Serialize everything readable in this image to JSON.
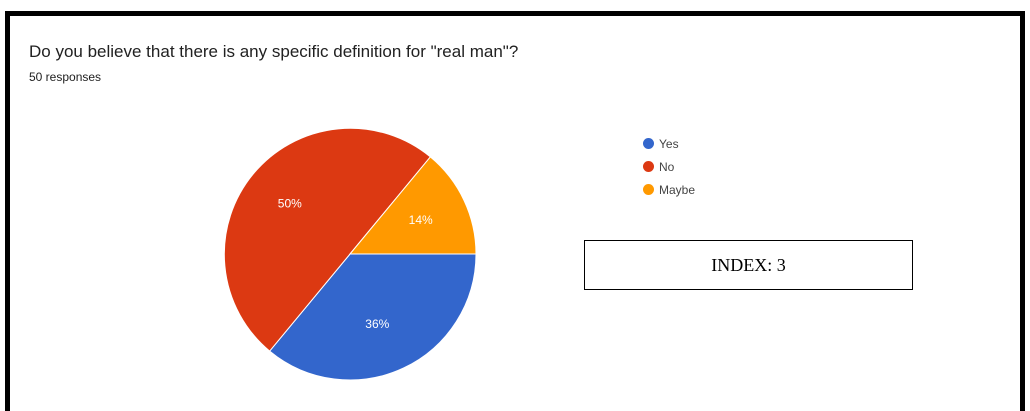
{
  "card": {
    "question": "Do you believe that there is any specific definition for \"real man\"?",
    "responses": "50 responses"
  },
  "index_box": {
    "label": "INDEX: 3"
  },
  "chart_data": {
    "type": "pie",
    "categories": [
      "Yes",
      "No",
      "Maybe"
    ],
    "values": [
      36,
      50,
      14
    ],
    "labels": [
      "36%",
      "50%",
      "14%"
    ],
    "colors": [
      "#3366cc",
      "#dc3912",
      "#ff9900"
    ],
    "legend_position": "right"
  }
}
